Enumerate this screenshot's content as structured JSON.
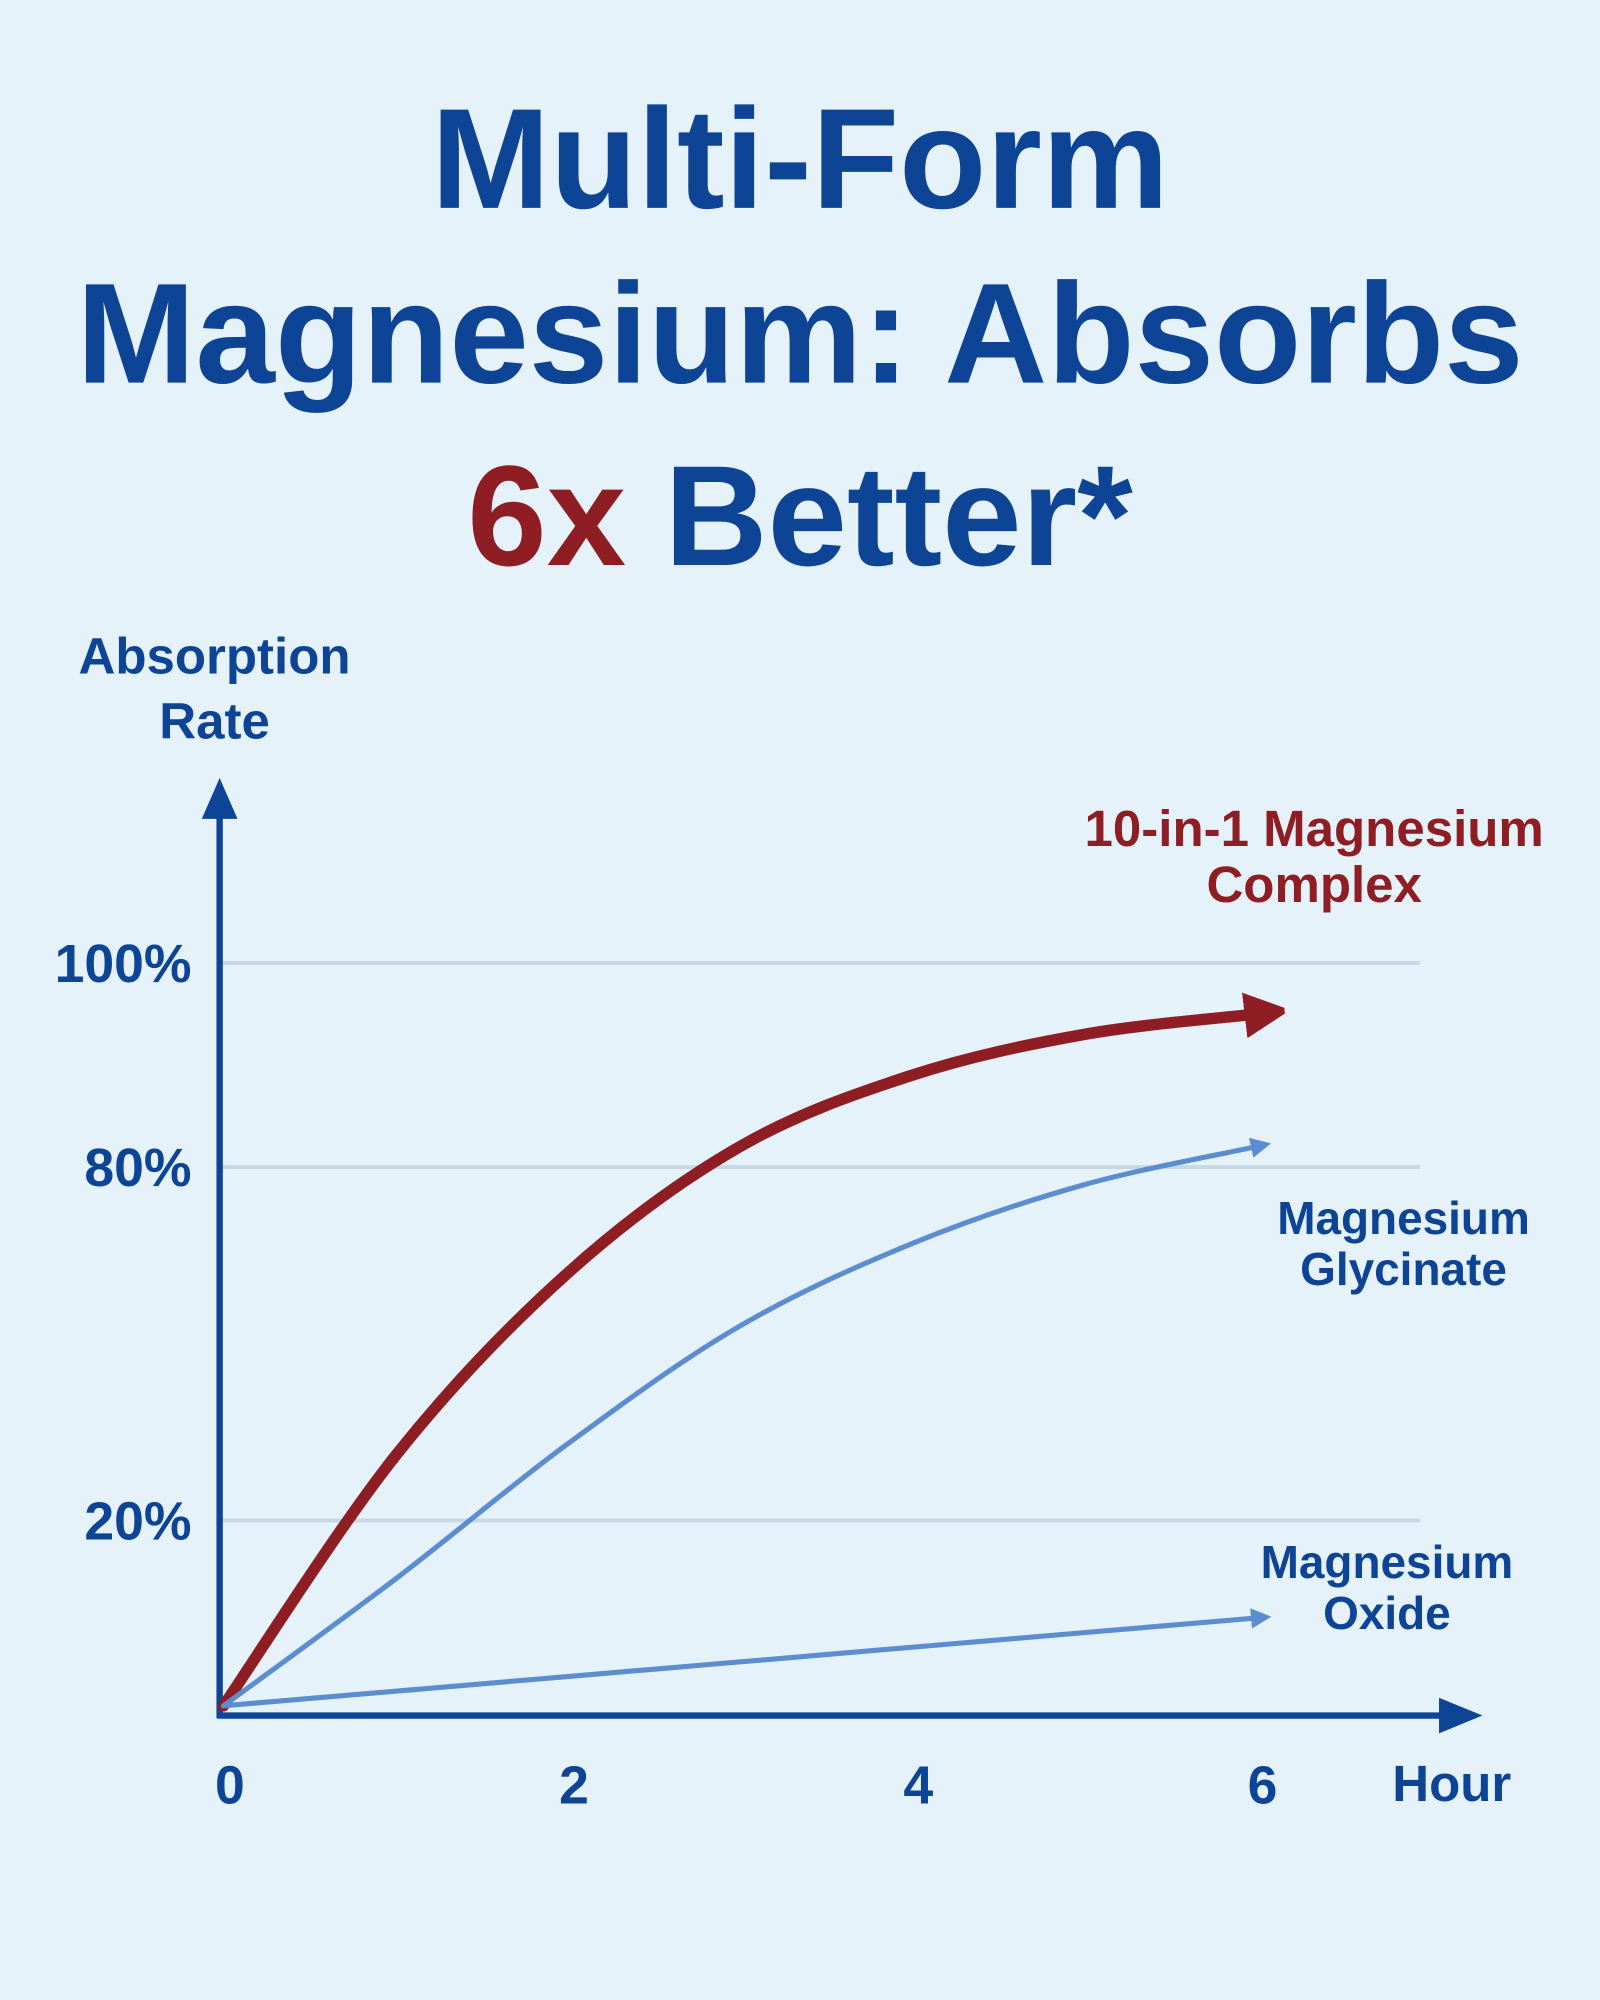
{
  "chart_data": {
    "type": "line",
    "title": [
      "Multi-Form",
      "Magnesium: Absorbs"
    ],
    "title_highlight": "6x",
    "title_end": "Better*",
    "ylabel": [
      "Absorption",
      "Rate"
    ],
    "xlabel": "Hour",
    "x": [
      0,
      1,
      2,
      3,
      4,
      5,
      6
    ],
    "xlim": [
      0,
      7.3
    ],
    "xticks": [
      0,
      2,
      4,
      6
    ],
    "ylim": [
      0,
      115
    ],
    "yticks": [
      {
        "value": 20,
        "label": "20%"
      },
      {
        "value": 80,
        "label": "80%"
      },
      {
        "value": 100,
        "label": "100%"
      }
    ],
    "grid": true,
    "series": [
      {
        "name": "10-in-1 Magnesium Complex",
        "color": "#8e1e23",
        "values": [
          1,
          31,
          62,
          82,
          89,
          93,
          95
        ]
      },
      {
        "name": "Magnesium Glycinate",
        "color": "#5b8dd0",
        "values": [
          1,
          14,
          33,
          53,
          67,
          77,
          82
        ]
      },
      {
        "name": "Magnesium Oxide",
        "color": "#5b8dd0",
        "values": [
          1,
          2.5,
          4,
          5.5,
          7,
          8.5,
          10
        ]
      }
    ]
  }
}
